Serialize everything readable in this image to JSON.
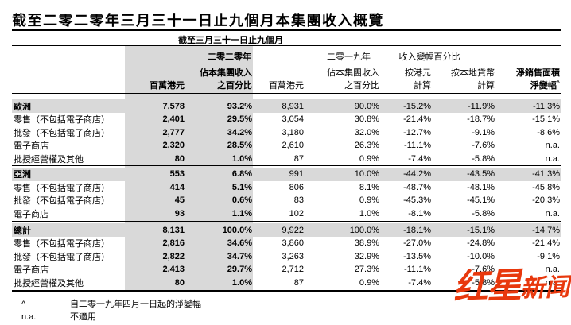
{
  "title": "截至二零二零年三月三十一日止九個月本集團收入概覽",
  "colors": {
    "band_gray": "#d9d9d9",
    "section_gray": "#d9d9d9",
    "watermark_red": "#e8380d",
    "text": "#000000"
  },
  "table": {
    "span_header": "截至三月三十一日止九個月",
    "year_2020": "二零二零年",
    "year_2019": "二零一九年",
    "change_group": "收入變幅百分比",
    "sub_headers": [
      {
        "l1": "",
        "l2": ""
      },
      {
        "l1": "",
        "l2": "百萬港元"
      },
      {
        "l1": "佔本集團收入",
        "l2": "之百分比"
      },
      {
        "l1": "",
        "l2": "百萬港元"
      },
      {
        "l1": "佔本集團收入",
        "l2": "之百分比"
      },
      {
        "l1": "按港元",
        "l2": "計算"
      },
      {
        "l1": "按本地貨幣",
        "l2": "計算"
      },
      {
        "l1": "淨銷售面積",
        "l2": "淨變幅",
        "sup": "^"
      }
    ],
    "rows": [
      {
        "type": "section",
        "label": "歐洲",
        "values": [
          "7,578",
          "93.2%",
          "8,931",
          "90.0%",
          "-15.2%",
          "-11.9%",
          "-11.3%"
        ]
      },
      {
        "type": "item",
        "label": "零售（不包括電子商店）",
        "values": [
          "2,401",
          "29.5%",
          "3,054",
          "30.8%",
          "-21.4%",
          "-18.7%",
          "-15.1%"
        ]
      },
      {
        "type": "item",
        "label": "批發（不包括電子商店）",
        "values": [
          "2,777",
          "34.2%",
          "3,180",
          "32.0%",
          "-12.7%",
          "-9.1%",
          "-8.6%"
        ]
      },
      {
        "type": "item",
        "label": "電子商店",
        "values": [
          "2,320",
          "28.5%",
          "2,610",
          "26.3%",
          "-11.1%",
          "-7.6%",
          "n.a."
        ]
      },
      {
        "type": "item",
        "label": "批授經營權及其他",
        "values": [
          "80",
          "1.0%",
          "87",
          "0.9%",
          "-7.4%",
          "-5.8%",
          "n.a."
        ]
      },
      {
        "type": "divider"
      },
      {
        "type": "section",
        "label": "亞洲",
        "values": [
          "553",
          "6.8%",
          "991",
          "10.0%",
          "-44.2%",
          "-43.5%",
          "-41.3%"
        ]
      },
      {
        "type": "item",
        "label": "零售（不包括電子商店）",
        "values": [
          "414",
          "5.1%",
          "806",
          "8.1%",
          "-48.7%",
          "-48.1%",
          "-45.8%"
        ]
      },
      {
        "type": "item",
        "label": "批發（不包括電子商店）",
        "values": [
          "45",
          "0.6%",
          "83",
          "0.9%",
          "-45.3%",
          "-45.1%",
          "-20.3%"
        ]
      },
      {
        "type": "item",
        "label": "電子商店",
        "values": [
          "93",
          "1.1%",
          "102",
          "1.0%",
          "-8.1%",
          "-5.8%",
          "n.a."
        ]
      },
      {
        "type": "divider2"
      },
      {
        "type": "section",
        "label": "總計",
        "values": [
          "8,131",
          "100.0%",
          "9,922",
          "100.0%",
          "-18.1%",
          "-15.1%",
          "-14.7%"
        ]
      },
      {
        "type": "item",
        "label": "零售（不包括電子商店）",
        "values": [
          "2,816",
          "34.6%",
          "3,860",
          "38.9%",
          "-27.0%",
          "-24.8%",
          "-21.4%"
        ]
      },
      {
        "type": "item",
        "label": "批發（不包括電子商店）",
        "values": [
          "2,822",
          "34.7%",
          "3,263",
          "32.9%",
          "-13.5%",
          "-10.0%",
          "-9.1%"
        ]
      },
      {
        "type": "item",
        "label": "電子商店",
        "values": [
          "2,413",
          "29.7%",
          "2,712",
          "27.3%",
          "-11.1%",
          "-7.6%",
          "n.a."
        ]
      },
      {
        "type": "item",
        "label": "批授經營權及其他",
        "values": [
          "80",
          "1.0%",
          "87",
          "0.9%",
          "-7.4%",
          "-5.8%",
          "n.a."
        ]
      }
    ]
  },
  "footnotes": [
    {
      "marker": "^",
      "text": "自二零一九年四月一日起的淨變幅"
    },
    {
      "marker": "n.a.",
      "text": "不適用"
    }
  ],
  "watermark": {
    "text1": "红星",
    "text2": "新闻"
  }
}
